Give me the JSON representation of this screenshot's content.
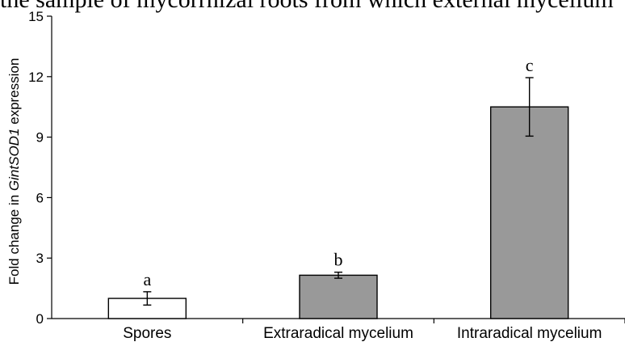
{
  "caption_fragment": "the sample of mycorrhizal roots from which external mycelium",
  "chart_data": {
    "type": "bar",
    "title": "",
    "xlabel": "",
    "ylabel_prefix": "Fold change in ",
    "ylabel_gene": "GintSOD1",
    "ylabel_suffix": " expression",
    "ylim": [
      0,
      15
    ],
    "yticks": [
      0,
      3,
      6,
      9,
      12,
      15
    ],
    "grid": false,
    "categories": [
      "Spores",
      "Extraradical mycelium",
      "Intraradical mycelium"
    ],
    "values": [
      1.0,
      2.15,
      10.5
    ],
    "errors": [
      0.33,
      0.15,
      1.45
    ],
    "significance_letters": [
      "a",
      "b",
      "c"
    ],
    "colors": [
      "#ffffff",
      "#999999",
      "#999999"
    ]
  }
}
